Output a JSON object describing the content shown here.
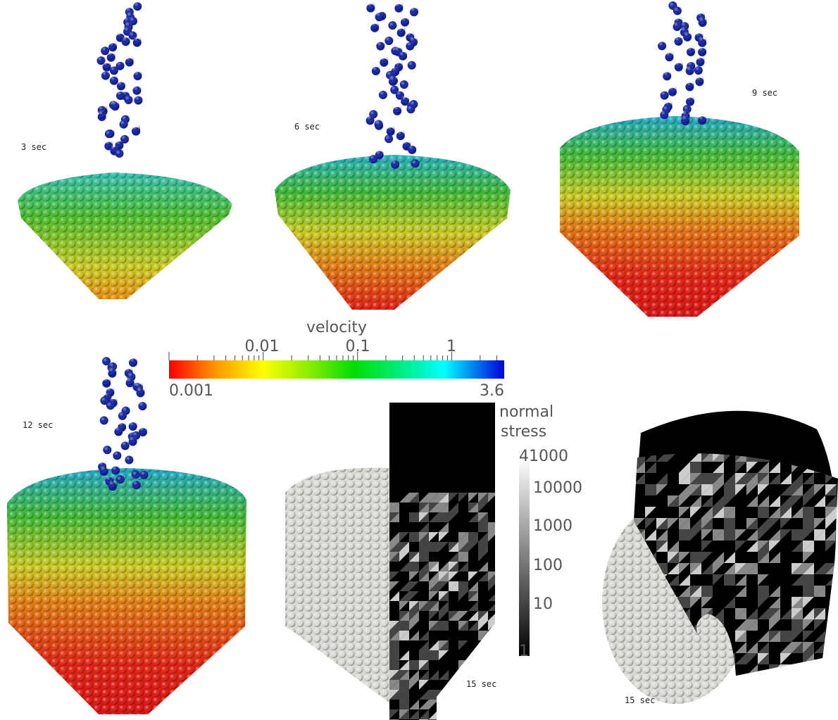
{
  "panels": [
    {
      "label": "3 sec"
    },
    {
      "label": "6 sec"
    },
    {
      "label": "9 sec"
    },
    {
      "label": "12 sec"
    },
    {
      "label": "15 sec"
    },
    {
      "label": "15 sec"
    }
  ],
  "velocity_colorbar": {
    "title": "velocity",
    "ticks": [
      "0.01",
      "0.1",
      "1"
    ],
    "min": "0.001",
    "max": "3.6"
  },
  "stress_colorbar": {
    "title": [
      "normal",
      "stress"
    ],
    "labels": [
      "41000",
      "10000",
      "1000",
      "100",
      "10",
      "1"
    ]
  }
}
